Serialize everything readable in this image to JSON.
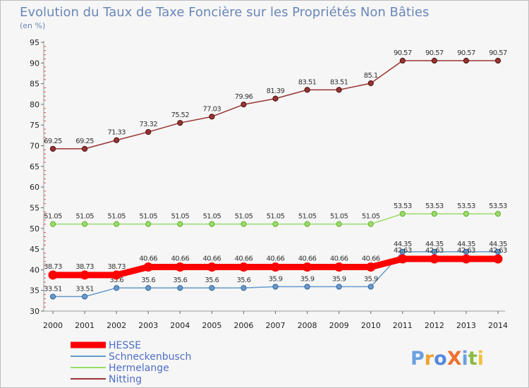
{
  "chart_data": {
    "type": "line",
    "title": "Evolution du Taux de Taxe Foncière sur les Propriétés Non Bâties",
    "ylabel": "(en %)",
    "xlabel": "",
    "ylim": [
      30,
      95
    ],
    "yticks": [
      30,
      35,
      40,
      45,
      50,
      55,
      60,
      65,
      70,
      75,
      80,
      85,
      90,
      95
    ],
    "x": [
      "2000",
      "2001",
      "2002",
      "2003",
      "2004",
      "2005",
      "2006",
      "2007",
      "2008",
      "2009",
      "2010",
      "2011",
      "2012",
      "2013",
      "2014"
    ],
    "series": [
      {
        "name": "HESSE",
        "color": "#ff0000",
        "values": [
          38.73,
          38.73,
          38.73,
          40.66,
          40.66,
          40.66,
          40.66,
          40.66,
          40.66,
          40.66,
          40.66,
          42.63,
          42.63,
          42.63,
          42.63
        ],
        "labels": [
          "38.73",
          "38.73",
          "38.73",
          "40.66",
          "40.66",
          "40.66",
          "40.66",
          "40.66",
          "40.66",
          "40.66",
          "40.66",
          "42.63",
          "42.63",
          "42.63",
          "42.63"
        ]
      },
      {
        "name": "Schneckenbusch",
        "color": "#6699cc",
        "values": [
          33.51,
          33.51,
          35.6,
          35.6,
          35.6,
          35.6,
          35.6,
          35.9,
          35.9,
          35.9,
          35.9,
          44.35,
          44.35,
          44.35,
          44.35
        ],
        "labels": [
          "33.51",
          "33.51",
          "35.6",
          "35.6",
          "35.6",
          "35.6",
          "35.6",
          "35.9",
          "35.9",
          "35.9",
          "35.9",
          "44.35",
          "44.35",
          "44.35",
          "44.35"
        ]
      },
      {
        "name": "Hermelange",
        "color": "#99dd66",
        "values": [
          51.05,
          51.05,
          51.05,
          51.05,
          51.05,
          51.05,
          51.05,
          51.05,
          51.05,
          51.05,
          51.05,
          53.53,
          53.53,
          53.53,
          53.53
        ],
        "labels": [
          "51.05",
          "51.05",
          "51.05",
          "51.05",
          "51.05",
          "51.05",
          "51.05",
          "51.05",
          "51.05",
          "51.05",
          "51.05",
          "53.53",
          "53.53",
          "53.53",
          "53.53"
        ]
      },
      {
        "name": "Nitting",
        "color": "#993333",
        "values": [
          69.25,
          69.25,
          71.33,
          73.32,
          75.52,
          77.03,
          79.96,
          81.39,
          83.51,
          83.51,
          85.1,
          90.57,
          90.57,
          90.57,
          90.57
        ],
        "labels": [
          "69.25",
          "69.25",
          "71.33",
          "73.32",
          "75.52",
          "77.03",
          "79.96",
          "81.39",
          "83.51",
          "83.51",
          "85.1",
          "90.57",
          "90.57",
          "90.57",
          "90.57"
        ]
      }
    ],
    "legend_position": "bottom-left",
    "grid": false
  },
  "brand": {
    "logo_text": "ProXiti",
    "colors": [
      "#6aa0e0",
      "#f0a030",
      "#5588dd",
      "#f07030",
      "#6aa0e0",
      "#88bb44",
      "#f0c040"
    ]
  }
}
